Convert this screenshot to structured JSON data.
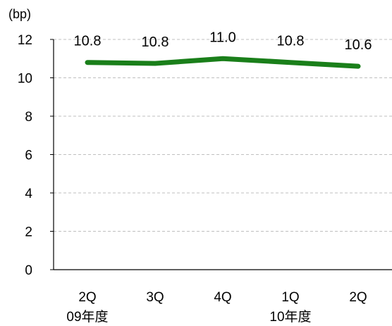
{
  "chart_data": {
    "type": "line",
    "ylabel": "(bp)",
    "categories": [
      "2Q",
      "3Q",
      "4Q",
      "1Q",
      "2Q"
    ],
    "category_groups": [
      "09年度",
      "",
      "",
      "10年度",
      ""
    ],
    "series": [
      {
        "values": [
          10.8,
          10.75,
          11.0,
          10.8,
          10.6
        ],
        "labels": [
          "10.8",
          "10.8",
          "11.0",
          "10.8",
          "10.6"
        ]
      }
    ],
    "ylim": [
      0,
      12
    ],
    "yticks": [
      "0",
      "2",
      "4",
      "6",
      "8",
      "10",
      "12"
    ],
    "grid": true,
    "colors": {
      "line": "#1a7f1a",
      "grid": "#bfbfbf",
      "axis": "#000000"
    }
  }
}
